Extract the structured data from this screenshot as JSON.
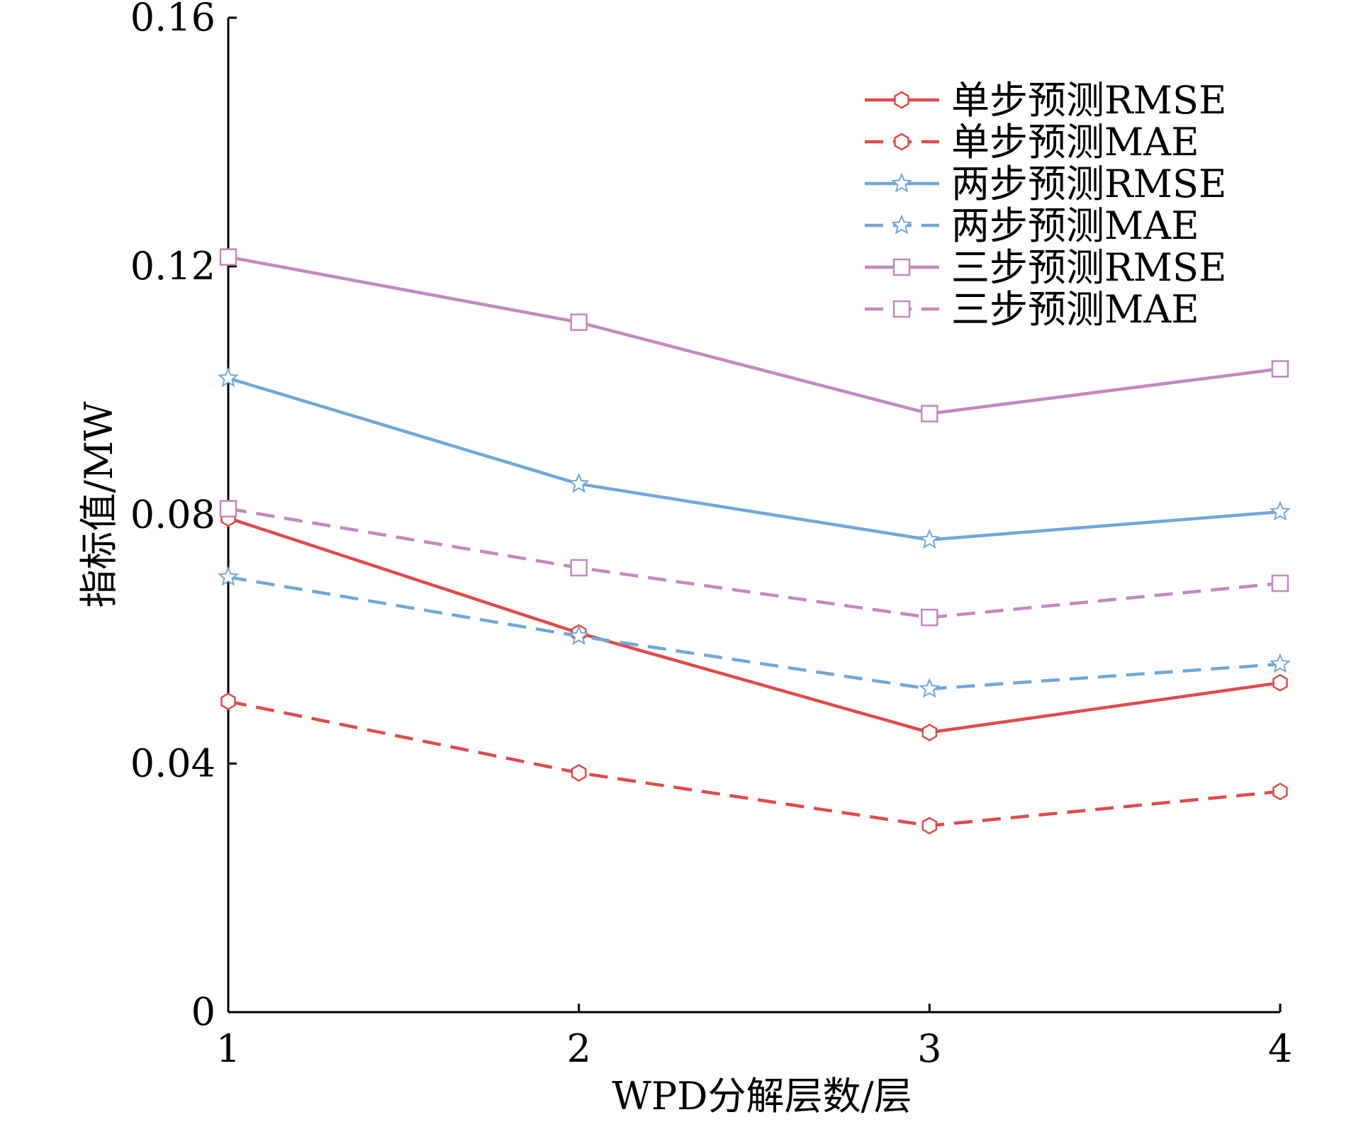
{
  "chart_data": {
    "type": "line",
    "title": "",
    "xlabel": "WPD分解层数/层",
    "ylabel": "指标值/MW",
    "x": [
      1,
      2,
      3,
      4
    ],
    "xticks": [
      "1",
      "2",
      "3",
      "4"
    ],
    "xlim": [
      1,
      4
    ],
    "ylim": [
      0,
      0.16
    ],
    "yticks": [
      0,
      0.04,
      0.08,
      0.12,
      0.16
    ],
    "ytick_labels": [
      "0",
      "0.04",
      "0.08",
      "0.12",
      "0.16"
    ],
    "grid": false,
    "legend_position": "top-right",
    "series": [
      {
        "name": "单步预测RMSE",
        "values": [
          0.0795,
          0.061,
          0.045,
          0.053
        ],
        "color": "#e04a4a",
        "dashed": false,
        "marker": "hexagon"
      },
      {
        "name": "单步预测MAE",
        "values": [
          0.05,
          0.0385,
          0.03,
          0.0355
        ],
        "color": "#e04a4a",
        "dashed": true,
        "marker": "hexagon"
      },
      {
        "name": "两步预测RMSE",
        "values": [
          0.102,
          0.085,
          0.076,
          0.0805
        ],
        "color": "#6fa8d8",
        "dashed": false,
        "marker": "star"
      },
      {
        "name": "两步预测MAE",
        "values": [
          0.07,
          0.0605,
          0.052,
          0.056
        ],
        "color": "#6fa8d8",
        "dashed": true,
        "marker": "star"
      },
      {
        "name": "三步预测RMSE",
        "values": [
          0.1215,
          0.111,
          0.0963,
          0.1035
        ],
        "color": "#c487c0",
        "dashed": false,
        "marker": "square"
      },
      {
        "name": "三步预测MAE",
        "values": [
          0.081,
          0.0715,
          0.0635,
          0.069
        ],
        "color": "#c487c0",
        "dashed": true,
        "marker": "square"
      }
    ]
  }
}
